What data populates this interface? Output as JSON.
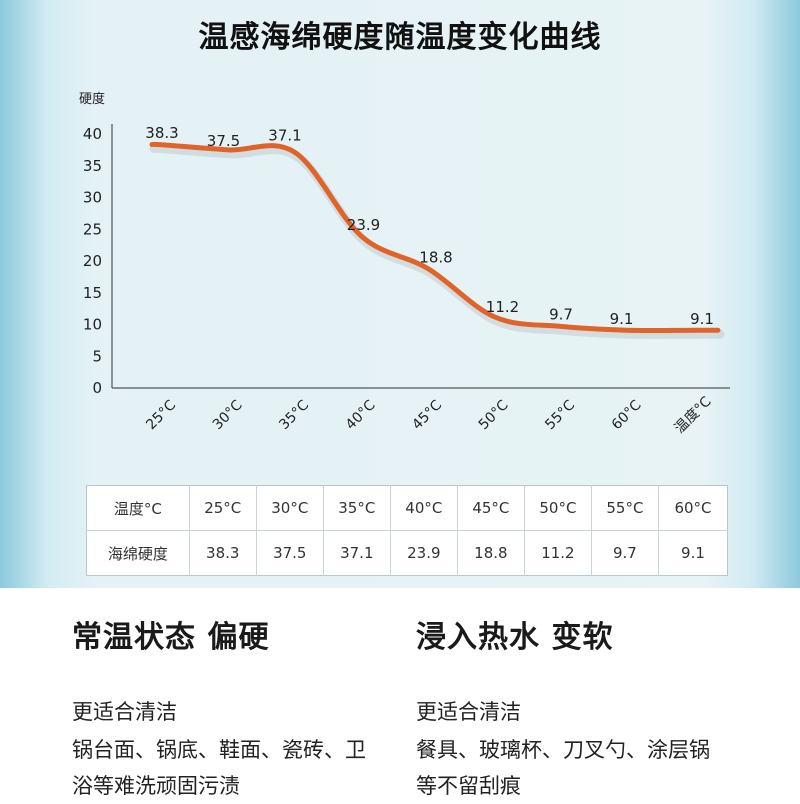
{
  "title": "温感海绵硬度随温度变化曲线",
  "chart_data": {
    "type": "line",
    "ylabel": "硬度",
    "ylim": [
      0,
      40
    ],
    "yticks": [
      0,
      5,
      10,
      15,
      20,
      25,
      30,
      35,
      40
    ],
    "categories": [
      "25°C",
      "30°C",
      "35°C",
      "40°C",
      "45°C",
      "50°C",
      "55°C",
      "60°C",
      "温度°C"
    ],
    "values": [
      38.3,
      37.5,
      37.1,
      23.9,
      18.8,
      11.2,
      9.7,
      9.1,
      9.1
    ],
    "data_labels": [
      "38.3",
      "37.5",
      "37.1",
      "23.9",
      "18.8",
      "11.2",
      "9.7",
      "9.1",
      "9.1"
    ],
    "line_color": "#e0642a",
    "grid": false
  },
  "table": {
    "headers": [
      "温度°C",
      "25°C",
      "30°C",
      "35°C",
      "40°C",
      "45°C",
      "50°C",
      "55°C",
      "60°C"
    ],
    "row": [
      "海绵硬度",
      "38.3",
      "37.5",
      "37.1",
      "23.9",
      "18.8",
      "11.2",
      "9.7",
      "9.1"
    ]
  },
  "left": {
    "heading": "常温状态 偏硬",
    "sub": "更适合清洁",
    "desc": "锅台面、锅底、鞋面、瓷砖、卫浴等难洗顽固污渍"
  },
  "right": {
    "heading": "浸入热水 变软",
    "sub": "更适合清洁",
    "desc": "餐具、玻璃杯、刀叉勺、涂层锅等不留刮痕"
  }
}
